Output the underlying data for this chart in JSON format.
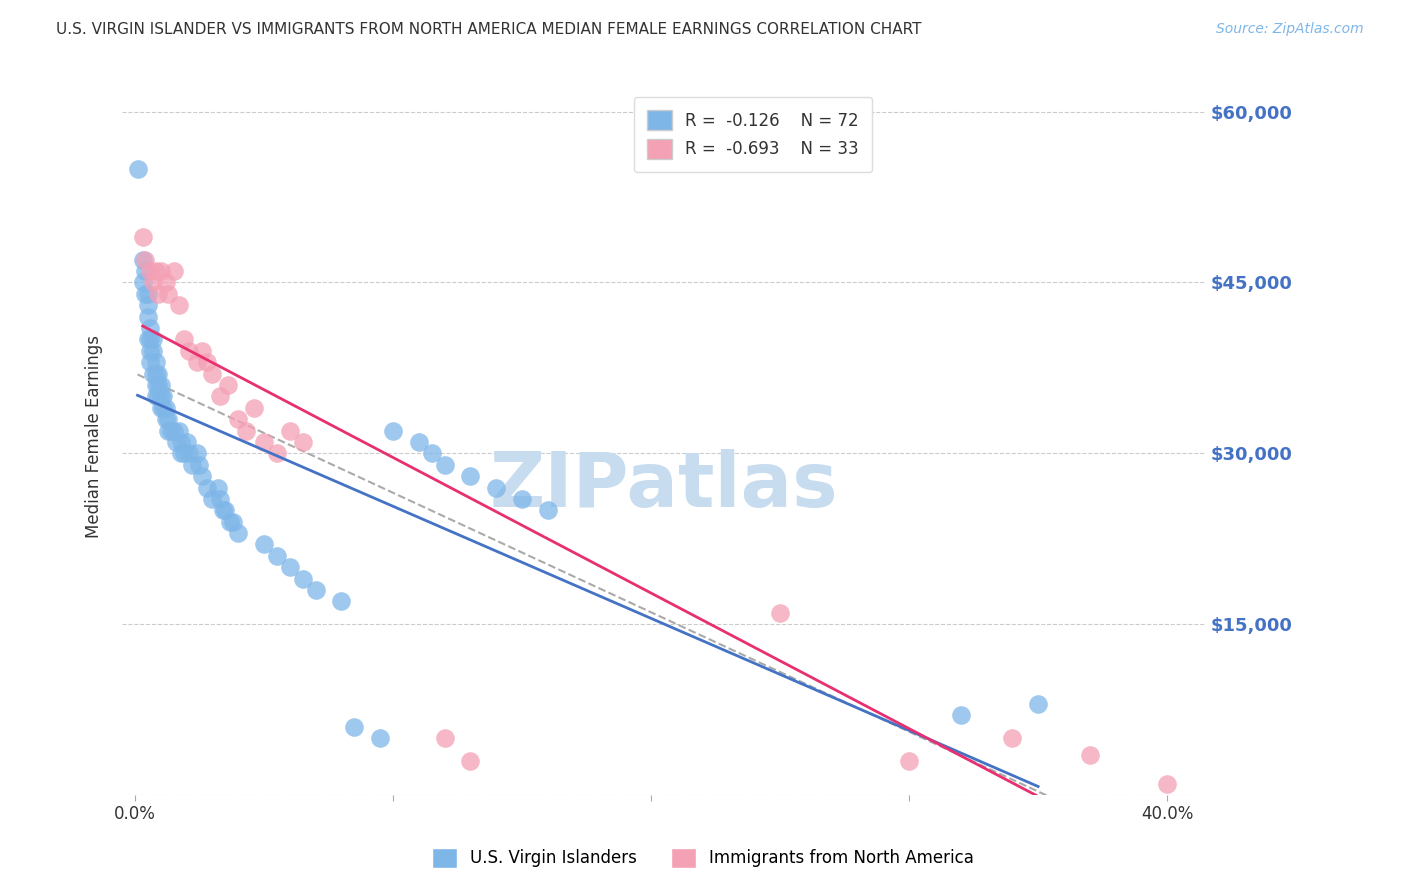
{
  "title": "U.S. VIRGIN ISLANDER VS IMMIGRANTS FROM NORTH AMERICA MEDIAN FEMALE EARNINGS CORRELATION CHART",
  "source": "Source: ZipAtlas.com",
  "ylabel": "Median Female Earnings",
  "xlim": [
    -0.005,
    0.415
  ],
  "ylim": [
    0,
    63000
  ],
  "right_ytick_labels": [
    "$60,000",
    "$45,000",
    "$30,000",
    "$15,000"
  ],
  "legend_r1": "R =  -0.126",
  "legend_n1": "N = 72",
  "legend_r2": "R =  -0.693",
  "legend_n2": "N = 33",
  "blue_color": "#7EB6E8",
  "pink_color": "#F4A0B5",
  "blue_line_color": "#4472C4",
  "pink_line_color": "#E83070",
  "dashed_color": "#AAAAAA",
  "right_label_color": "#4472C4",
  "watermark_color": "#C8DCF0",
  "background_color": "#FFFFFF",
  "blue_scatter": {
    "x": [
      0.001,
      0.003,
      0.003,
      0.004,
      0.004,
      0.005,
      0.005,
      0.005,
      0.005,
      0.006,
      0.006,
      0.006,
      0.006,
      0.007,
      0.007,
      0.007,
      0.008,
      0.008,
      0.008,
      0.008,
      0.009,
      0.009,
      0.009,
      0.01,
      0.01,
      0.01,
      0.011,
      0.011,
      0.012,
      0.012,
      0.013,
      0.013,
      0.014,
      0.015,
      0.016,
      0.017,
      0.018,
      0.018,
      0.019,
      0.02,
      0.021,
      0.022,
      0.024,
      0.025,
      0.026,
      0.028,
      0.03,
      0.032,
      0.033,
      0.034,
      0.035,
      0.037,
      0.038,
      0.04,
      0.05,
      0.055,
      0.06,
      0.065,
      0.07,
      0.08,
      0.085,
      0.095,
      0.1,
      0.11,
      0.115,
      0.12,
      0.13,
      0.14,
      0.15,
      0.16,
      0.32,
      0.35
    ],
    "y": [
      55000,
      47000,
      45000,
      44000,
      46000,
      43000,
      44000,
      42000,
      40000,
      41000,
      40000,
      39000,
      38000,
      40000,
      39000,
      37000,
      38000,
      37000,
      36000,
      35000,
      37000,
      36000,
      35000,
      36000,
      35000,
      34000,
      35000,
      34000,
      34000,
      33000,
      33000,
      32000,
      32000,
      32000,
      31000,
      32000,
      31000,
      30000,
      30000,
      31000,
      30000,
      29000,
      30000,
      29000,
      28000,
      27000,
      26000,
      27000,
      26000,
      25000,
      25000,
      24000,
      24000,
      23000,
      22000,
      21000,
      20000,
      19000,
      18000,
      17000,
      6000,
      5000,
      32000,
      31000,
      30000,
      29000,
      28000,
      27000,
      26000,
      25000,
      7000,
      8000
    ]
  },
  "pink_scatter": {
    "x": [
      0.003,
      0.004,
      0.006,
      0.007,
      0.008,
      0.009,
      0.01,
      0.012,
      0.013,
      0.015,
      0.017,
      0.019,
      0.021,
      0.024,
      0.026,
      0.028,
      0.03,
      0.033,
      0.036,
      0.04,
      0.043,
      0.046,
      0.05,
      0.055,
      0.06,
      0.065,
      0.12,
      0.13,
      0.25,
      0.3,
      0.34,
      0.37,
      0.4
    ],
    "y": [
      49000,
      47000,
      46000,
      45000,
      46000,
      44000,
      46000,
      45000,
      44000,
      46000,
      43000,
      40000,
      39000,
      38000,
      39000,
      38000,
      37000,
      35000,
      36000,
      33000,
      32000,
      34000,
      31000,
      30000,
      32000,
      31000,
      5000,
      3000,
      16000,
      3000,
      5000,
      3500,
      1000
    ]
  }
}
